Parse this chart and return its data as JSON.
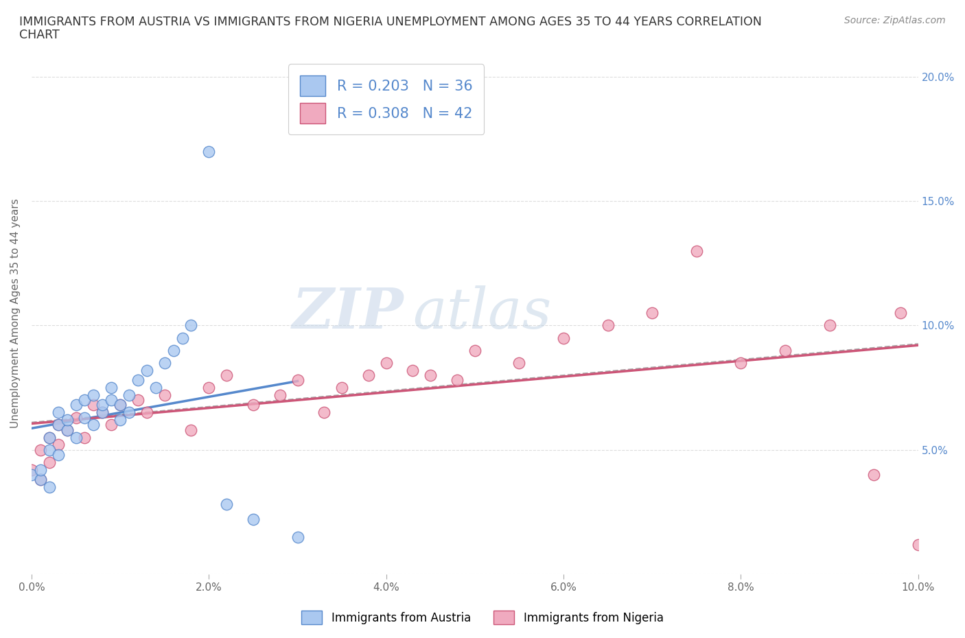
{
  "title_line1": "IMMIGRANTS FROM AUSTRIA VS IMMIGRANTS FROM NIGERIA UNEMPLOYMENT AMONG AGES 35 TO 44 YEARS CORRELATION",
  "title_line2": "CHART",
  "source": "Source: ZipAtlas.com",
  "ylabel": "Unemployment Among Ages 35 to 44 years",
  "austria_x": [
    0.0,
    0.001,
    0.001,
    0.002,
    0.002,
    0.002,
    0.003,
    0.003,
    0.003,
    0.004,
    0.004,
    0.005,
    0.005,
    0.006,
    0.006,
    0.007,
    0.007,
    0.008,
    0.008,
    0.009,
    0.009,
    0.01,
    0.01,
    0.011,
    0.011,
    0.012,
    0.013,
    0.014,
    0.015,
    0.016,
    0.017,
    0.018,
    0.02,
    0.022,
    0.025,
    0.03
  ],
  "austria_y": [
    0.04,
    0.038,
    0.042,
    0.05,
    0.035,
    0.055,
    0.06,
    0.048,
    0.065,
    0.058,
    0.062,
    0.055,
    0.068,
    0.063,
    0.07,
    0.06,
    0.072,
    0.065,
    0.068,
    0.07,
    0.075,
    0.062,
    0.068,
    0.072,
    0.065,
    0.078,
    0.082,
    0.075,
    0.085,
    0.09,
    0.095,
    0.1,
    0.17,
    0.028,
    0.022,
    0.015
  ],
  "nigeria_x": [
    0.0,
    0.001,
    0.001,
    0.002,
    0.002,
    0.003,
    0.003,
    0.004,
    0.005,
    0.006,
    0.007,
    0.008,
    0.009,
    0.01,
    0.012,
    0.013,
    0.015,
    0.018,
    0.02,
    0.022,
    0.025,
    0.028,
    0.03,
    0.033,
    0.035,
    0.038,
    0.04,
    0.043,
    0.045,
    0.048,
    0.05,
    0.055,
    0.06,
    0.065,
    0.07,
    0.075,
    0.08,
    0.085,
    0.09,
    0.095,
    0.098,
    0.1
  ],
  "nigeria_y": [
    0.042,
    0.038,
    0.05,
    0.045,
    0.055,
    0.052,
    0.06,
    0.058,
    0.063,
    0.055,
    0.068,
    0.065,
    0.06,
    0.068,
    0.07,
    0.065,
    0.072,
    0.058,
    0.075,
    0.08,
    0.068,
    0.072,
    0.078,
    0.065,
    0.075,
    0.08,
    0.085,
    0.082,
    0.08,
    0.078,
    0.09,
    0.085,
    0.095,
    0.1,
    0.105,
    0.13,
    0.085,
    0.09,
    0.1,
    0.04,
    0.105,
    0.012
  ],
  "austria_color": "#aac8f0",
  "nigeria_color": "#f0aabf",
  "austria_R": 0.203,
  "austria_N": 36,
  "nigeria_R": 0.308,
  "nigeria_N": 42,
  "xlim": [
    0.0,
    0.1
  ],
  "ylim": [
    0.0,
    0.21
  ],
  "yticks": [
    0.0,
    0.05,
    0.1,
    0.15,
    0.2
  ],
  "xticks": [
    0.0,
    0.02,
    0.04,
    0.06,
    0.08,
    0.1
  ],
  "xtick_labels": [
    "0.0%",
    "2.0%",
    "4.0%",
    "6.0%",
    "8.0%",
    "10.0%"
  ],
  "ytick_labels_left": [
    "",
    "",
    "",
    "",
    ""
  ],
  "ytick_labels_right": [
    "",
    "5.0%",
    "10.0%",
    "15.0%",
    "20.0%"
  ],
  "watermark_zip": "ZIP",
  "watermark_atlas": "atlas",
  "austria_line_color": "#5588cc",
  "nigeria_line_color": "#cc5577",
  "trend_line_color": "#aaaaaa",
  "background_color": "#ffffff",
  "grid_color": "#dddddd",
  "right_axis_color": "#5588cc"
}
